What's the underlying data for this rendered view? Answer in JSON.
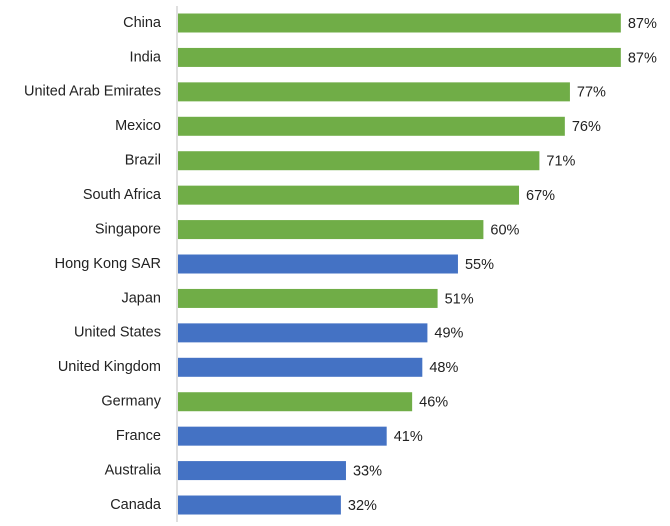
{
  "chart_data": {
    "type": "bar",
    "orientation": "horizontal",
    "categories": [
      "China",
      "India",
      "United Arab Emirates",
      "Mexico",
      "Brazil",
      "South Africa",
      "Singapore",
      "Hong Kong SAR",
      "Japan",
      "United States",
      "United Kingdom",
      "Germany",
      "France",
      "Australia",
      "Canada"
    ],
    "values": [
      87,
      87,
      77,
      76,
      71,
      67,
      60,
      55,
      51,
      49,
      48,
      46,
      41,
      33,
      32
    ],
    "value_labels": [
      "87%",
      "87%",
      "77%",
      "76%",
      "71%",
      "67%",
      "60%",
      "55%",
      "51%",
      "49%",
      "48%",
      "46%",
      "41%",
      "33%",
      "32%"
    ],
    "colors": [
      "#70ad47",
      "#70ad47",
      "#70ad47",
      "#70ad47",
      "#70ad47",
      "#70ad47",
      "#70ad47",
      "#4472c4",
      "#70ad47",
      "#4472c4",
      "#4472c4",
      "#70ad47",
      "#4472c4",
      "#4472c4",
      "#4472c4"
    ]
  }
}
